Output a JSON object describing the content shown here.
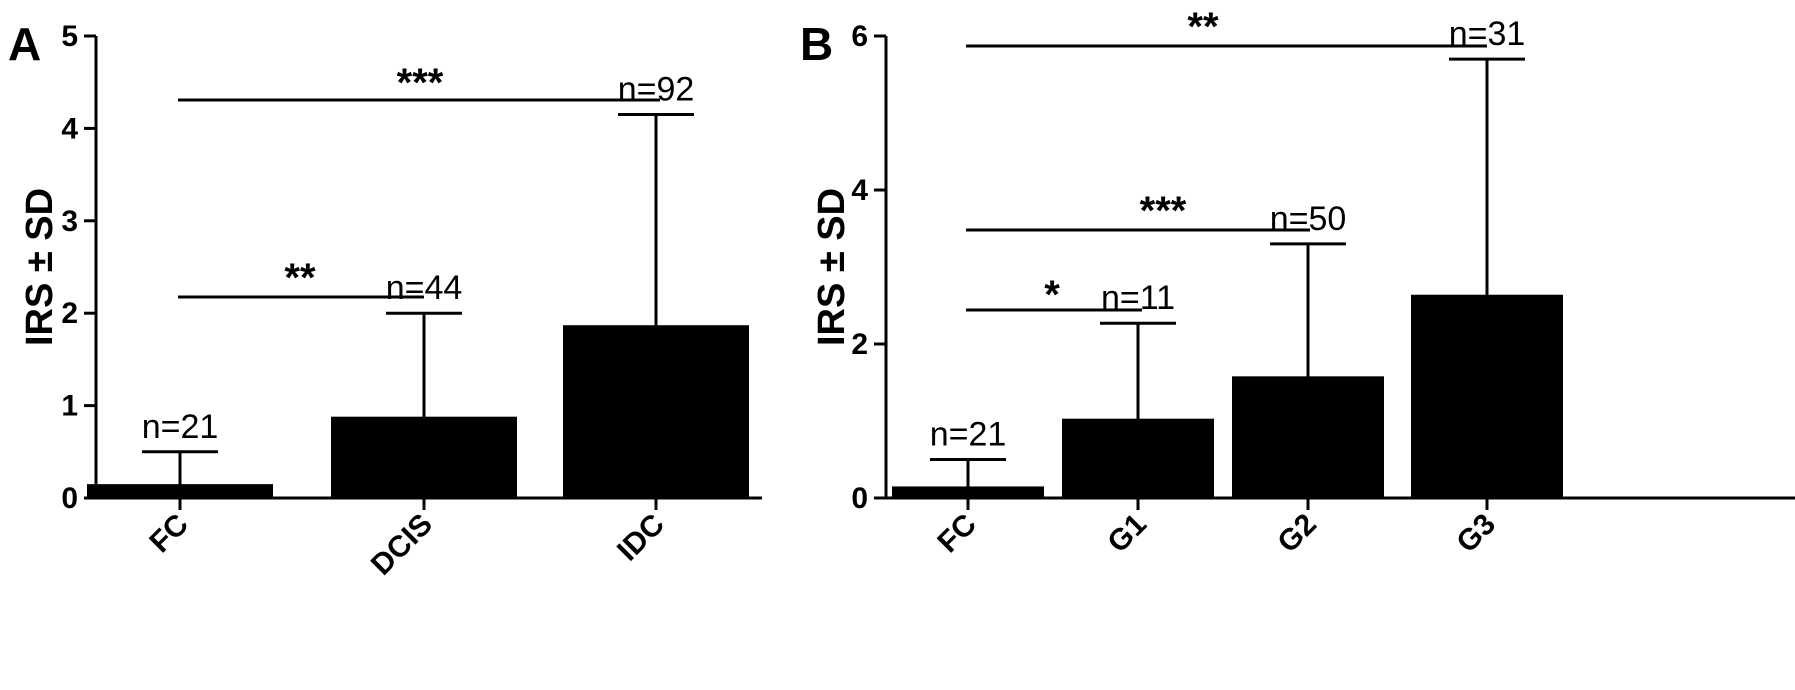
{
  "chart_data": [
    {
      "type": "bar",
      "panel": "A",
      "ylabel": "IRS ± SD",
      "ylim": [
        0,
        5
      ],
      "yticks": [
        "0",
        "1",
        "2",
        "3",
        "4",
        "5"
      ],
      "categories": [
        "FC",
        "DCIS",
        "IDC"
      ],
      "values": [
        0.15,
        0.88,
        1.87
      ],
      "errors": [
        0.35,
        1.12,
        2.28
      ],
      "n_labels": [
        "n=21",
        "n=44",
        "n=92"
      ],
      "significance": [
        {
          "from": "FC",
          "to": "DCIS",
          "label": "**"
        },
        {
          "from": "FC",
          "to": "IDC",
          "label": "***"
        }
      ],
      "grid": false
    },
    {
      "type": "bar",
      "panel": "B",
      "ylabel": "IRS ± SD",
      "ylim": [
        0,
        6
      ],
      "yticks": [
        "0",
        "2",
        "4",
        "6"
      ],
      "categories": [
        "FC",
        "G1",
        "G2",
        "G3"
      ],
      "values": [
        0.15,
        1.03,
        1.58,
        2.64
      ],
      "errors": [
        0.35,
        1.24,
        1.72,
        3.06
      ],
      "n_labels": [
        "n=21",
        "n=11",
        "n=50",
        "n=31"
      ],
      "significance": [
        {
          "from": "FC",
          "to": "G1",
          "label": "*"
        },
        {
          "from": "FC",
          "to": "G2",
          "label": "***"
        },
        {
          "from": "FC",
          "to": "G3",
          "label": "**"
        }
      ],
      "grid": false
    }
  ]
}
